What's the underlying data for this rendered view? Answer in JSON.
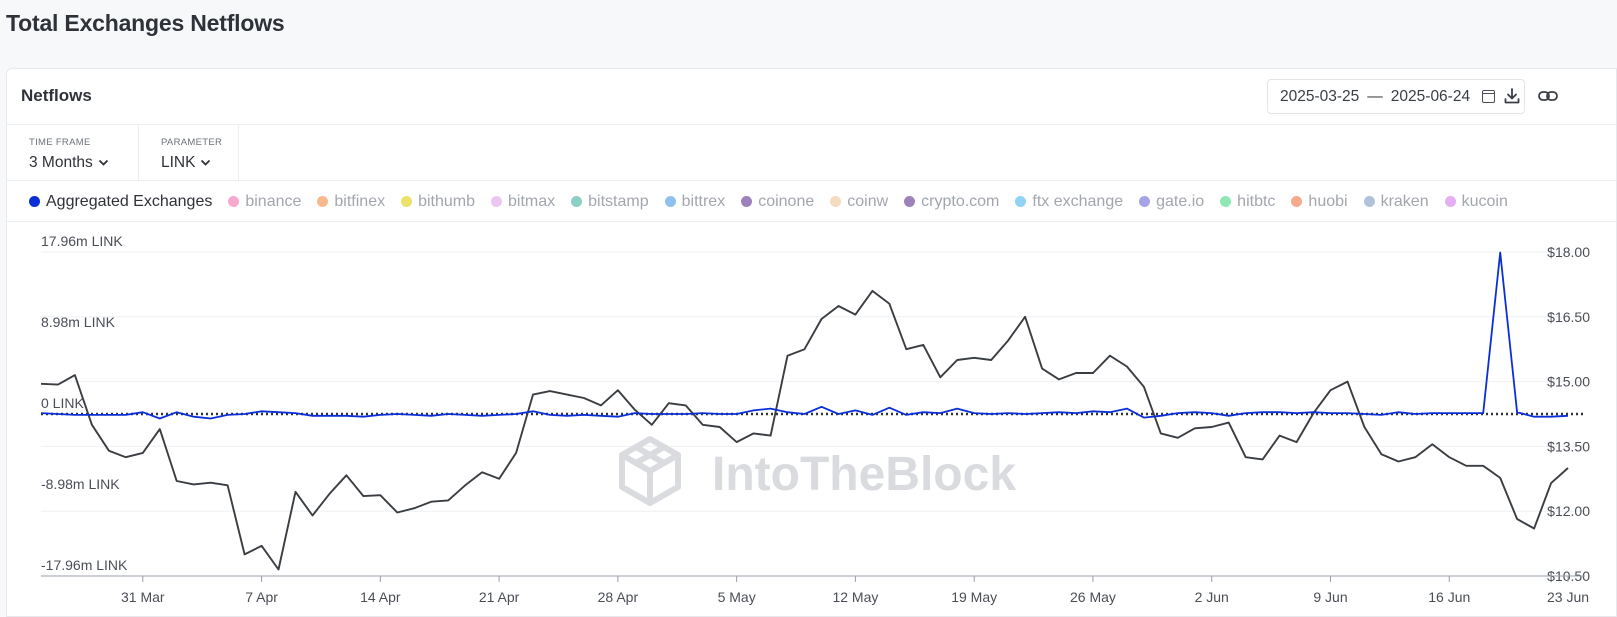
{
  "page": {
    "title": "Total Exchanges Netflows"
  },
  "card": {
    "title": "Netflows",
    "date_start": "2025-03-25",
    "date_sep": "—",
    "date_end": "2025-06-24",
    "icons": [
      "calendar-icon",
      "download-icon",
      "link-icon"
    ]
  },
  "controls": {
    "timeframe": {
      "label": "TIME FRAME",
      "value": "3 Months"
    },
    "parameter": {
      "label": "PARAMETER",
      "value": "LINK"
    }
  },
  "legend": [
    {
      "name": "Aggregated Exchanges",
      "color": "#0b2fd6",
      "active": true
    },
    {
      "name": "binance",
      "color": "#f7a8cf",
      "active": false
    },
    {
      "name": "bitfinex",
      "color": "#f8b98e",
      "active": false
    },
    {
      "name": "bithumb",
      "color": "#ece26a",
      "active": false
    },
    {
      "name": "bitmax",
      "color": "#ecc6f3",
      "active": false
    },
    {
      "name": "bitstamp",
      "color": "#8ccfc5",
      "active": false
    },
    {
      "name": "bittrex",
      "color": "#90c0ee",
      "active": false
    },
    {
      "name": "coinone",
      "color": "#9e82bc",
      "active": false
    },
    {
      "name": "coinw",
      "color": "#f5dcc0",
      "active": false
    },
    {
      "name": "crypto.com",
      "color": "#9e82bc",
      "active": false
    },
    {
      "name": "ftx exchange",
      "color": "#92d2f5",
      "active": false
    },
    {
      "name": "gate.io",
      "color": "#a6a4e6",
      "active": false
    },
    {
      "name": "hitbtc",
      "color": "#8ee8b2",
      "active": false
    },
    {
      "name": "huobi",
      "color": "#f7a98e",
      "active": false
    },
    {
      "name": "kraken",
      "color": "#b2c2dc",
      "active": false
    },
    {
      "name": "kucoin",
      "color": "#e4b0f2",
      "active": false
    }
  ],
  "watermark": "IntoTheBlock",
  "chart_data": {
    "type": "line",
    "grid": true,
    "x_ticks": [
      "31 Mar",
      "7 Apr",
      "14 Apr",
      "21 Apr",
      "28 Apr",
      "5 May",
      "12 May",
      "19 May",
      "26 May",
      "2 Jun",
      "9 Jun",
      "16 Jun",
      "23 Jun"
    ],
    "y_left": {
      "ticks": [
        "17.96m LINK",
        "8.98m LINK",
        "0 LINK",
        "-8.98m LINK",
        "-17.96m LINK"
      ],
      "values": [
        17.96,
        8.98,
        0,
        -8.98,
        -17.96
      ],
      "unit": "m LINK",
      "range": [
        -17.96,
        17.96
      ]
    },
    "y_right": {
      "ticks": [
        "$18.00",
        "$16.50",
        "$15.00",
        "$13.50",
        "$12.00",
        "$10.50"
      ],
      "values": [
        18,
        16.5,
        15,
        13.5,
        12,
        10.5
      ],
      "range": [
        10.5,
        18
      ]
    },
    "x_range": [
      "2025-03-25",
      "2025-06-24"
    ],
    "series": [
      {
        "axis": "left",
        "color": "#0b2fd6",
        "start_date": "2025-03-25",
        "values": [
          0.1,
          0,
          -0.1,
          -0.1,
          -0.1,
          -0.1,
          0.2,
          -0.5,
          0.2,
          -0.3,
          -0.5,
          -0.1,
          0,
          0.3,
          0.2,
          0.1,
          -0.2,
          -0.2,
          -0.2,
          -0.3,
          -0.1,
          0,
          -0.1,
          -0.2,
          0,
          -0.1,
          -0.2,
          -0.1,
          0,
          0.3,
          -0.1,
          -0.2,
          -0.1,
          -0.2,
          -0.3,
          0.1,
          0,
          0,
          0,
          0.1,
          0,
          0,
          0.4,
          0.6,
          0.2,
          0,
          0.8,
          0,
          0.4,
          -0.1,
          0.7,
          -0.1,
          0.2,
          0.1,
          0.6,
          0.1,
          0,
          0.1,
          0,
          0.1,
          0.2,
          0.1,
          0.3,
          0.2,
          0.6,
          -0.4,
          -0.2,
          0.1,
          0.2,
          0.1,
          -0.2,
          0.1,
          0.2,
          0.2,
          0.1,
          0.2,
          0.1,
          0.1,
          0,
          -0.1,
          0.2,
          0,
          0.1,
          0.1,
          0.1,
          0.1,
          17.9,
          0.2,
          -0.3,
          -0.3,
          -0.2
        ]
      },
      {
        "axis": "right",
        "color": "#3a3d42",
        "start_date": "2025-03-25",
        "values": [
          14.95,
          14.93,
          15.15,
          14.0,
          13.4,
          13.25,
          13.35,
          13.9,
          12.7,
          12.62,
          12.66,
          12.6,
          11.0,
          11.2,
          10.65,
          12.45,
          11.9,
          12.4,
          12.83,
          12.35,
          12.37,
          11.97,
          12.07,
          12.22,
          12.25,
          12.6,
          12.9,
          12.75,
          13.35,
          14.7,
          14.78,
          14.7,
          14.62,
          14.45,
          14.8,
          14.35,
          14.0,
          14.5,
          14.45,
          14.0,
          13.95,
          13.6,
          13.8,
          13.75,
          15.6,
          15.75,
          16.45,
          16.75,
          16.55,
          17.1,
          16.8,
          15.75,
          15.85,
          15.1,
          15.5,
          15.55,
          15.5,
          15.95,
          16.5,
          15.3,
          15.05,
          15.2,
          15.2,
          15.6,
          15.35,
          14.88,
          13.8,
          13.7,
          13.92,
          13.95,
          14.05,
          13.25,
          13.2,
          13.75,
          13.6,
          14.27,
          14.8,
          15.0,
          13.95,
          13.32,
          13.15,
          13.25,
          13.55,
          13.25,
          13.05,
          13.05,
          12.77,
          11.82,
          11.6,
          12.65,
          13.0
        ]
      }
    ]
  }
}
